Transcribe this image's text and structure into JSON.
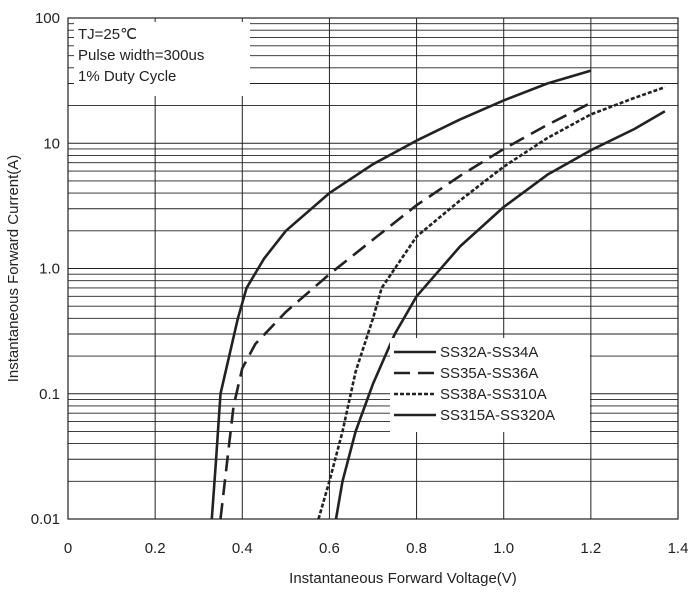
{
  "chart_data": {
    "type": "line",
    "xlabel": "Instantaneous Forward Voltage(V)",
    "ylabel": "Instantaneous Forward Current(A)",
    "xlim": [
      0,
      1.4
    ],
    "ylim": [
      0.01,
      100
    ],
    "yscale": "log",
    "grid": true,
    "x_ticks": [
      0,
      0.2,
      0.4,
      0.6,
      0.8,
      1.0,
      1.2,
      1.4
    ],
    "x_tick_labels": [
      "0",
      "0.2",
      "0.4",
      "0.6",
      "0.8",
      "1.0",
      "1.2",
      "1.4"
    ],
    "y_ticks": [
      0.01,
      0.1,
      1,
      10,
      100
    ],
    "y_tick_labels": [
      "0.01",
      "0.1",
      "1.0",
      "10",
      "100"
    ],
    "annotations": [
      "TJ=25℃",
      "Pulse width=300us",
      "1% Duty Cycle"
    ],
    "legend_position": "lower-right",
    "series": [
      {
        "name": "SS32A-SS34A",
        "dash": "solid",
        "x": [
          0.33,
          0.34,
          0.35,
          0.37,
          0.39,
          0.41,
          0.45,
          0.5,
          0.6,
          0.7,
          0.8,
          0.9,
          1.0,
          1.1,
          1.2
        ],
        "y": [
          0.01,
          0.03,
          0.1,
          0.2,
          0.4,
          0.7,
          1.2,
          2.0,
          4.0,
          6.8,
          10.5,
          15.5,
          22,
          30,
          38
        ]
      },
      {
        "name": "SS35A-SS36A",
        "dash": "dashed",
        "x": [
          0.35,
          0.37,
          0.38,
          0.4,
          0.43,
          0.5,
          0.6,
          0.7,
          0.8,
          0.9,
          1.0,
          1.1,
          1.2
        ],
        "y": [
          0.01,
          0.04,
          0.08,
          0.16,
          0.25,
          0.45,
          0.9,
          1.7,
          3.2,
          5.5,
          9.0,
          14,
          21
        ]
      },
      {
        "name": "SS38A-SS310A",
        "dash": "dotted",
        "x": [
          0.575,
          0.6,
          0.63,
          0.66,
          0.7,
          0.72,
          0.8,
          0.9,
          1.0,
          1.1,
          1.2,
          1.3,
          1.37
        ],
        "y": [
          0.01,
          0.02,
          0.05,
          0.15,
          0.4,
          0.7,
          1.8,
          3.5,
          6.5,
          11,
          17,
          23,
          28
        ]
      },
      {
        "name": "SS315A-SS320A",
        "dash": "solid",
        "x": [
          0.615,
          0.63,
          0.66,
          0.7,
          0.75,
          0.8,
          0.9,
          1.0,
          1.1,
          1.2,
          1.3,
          1.37
        ],
        "y": [
          0.01,
          0.02,
          0.05,
          0.12,
          0.3,
          0.6,
          1.5,
          3.1,
          5.6,
          8.8,
          13,
          18
        ]
      }
    ]
  }
}
